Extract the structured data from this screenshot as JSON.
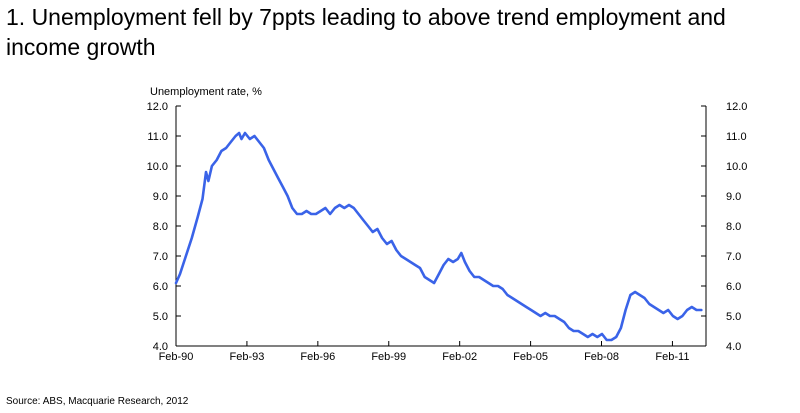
{
  "header": {
    "title": "1.  Unemployment fell by 7ppts leading to above trend employment and income growth"
  },
  "footer": {
    "source": "Source: ABS, Macquarie Research, 2012"
  },
  "colors": {
    "series": "#3a63e8",
    "axis": "#000000"
  },
  "chart_data": {
    "type": "line",
    "ylabel": "Unemployment rate, %",
    "xlabel": "",
    "ylim": [
      4.0,
      12.0
    ],
    "xlim": [
      1990.08,
      2012.5
    ],
    "grid": false,
    "dual_y_axis": true,
    "yticks": [
      "4.0",
      "5.0",
      "6.0",
      "7.0",
      "8.0",
      "9.0",
      "10.0",
      "11.0",
      "12.0"
    ],
    "xticks": [
      {
        "label": "Feb-90",
        "x": 1990.08
      },
      {
        "label": "Feb-93",
        "x": 1993.08
      },
      {
        "label": "Feb-96",
        "x": 1996.08
      },
      {
        "label": "Feb-99",
        "x": 1999.08
      },
      {
        "label": "Feb-02",
        "x": 2002.08
      },
      {
        "label": "Feb-05",
        "x": 2005.08
      },
      {
        "label": "Feb-08",
        "x": 2008.08
      },
      {
        "label": "Feb-11",
        "x": 2011.08
      }
    ],
    "series": [
      {
        "points": [
          [
            1990.08,
            6.1
          ],
          [
            1990.25,
            6.4
          ],
          [
            1990.5,
            7.0
          ],
          [
            1990.75,
            7.6
          ],
          [
            1991.0,
            8.3
          ],
          [
            1991.2,
            8.9
          ],
          [
            1991.35,
            9.8
          ],
          [
            1991.45,
            9.5
          ],
          [
            1991.6,
            10.0
          ],
          [
            1991.8,
            10.2
          ],
          [
            1992.0,
            10.5
          ],
          [
            1992.2,
            10.6
          ],
          [
            1992.4,
            10.8
          ],
          [
            1992.6,
            11.0
          ],
          [
            1992.75,
            11.1
          ],
          [
            1992.85,
            10.9
          ],
          [
            1993.0,
            11.1
          ],
          [
            1993.2,
            10.9
          ],
          [
            1993.4,
            11.0
          ],
          [
            1993.6,
            10.8
          ],
          [
            1993.8,
            10.6
          ],
          [
            1994.0,
            10.2
          ],
          [
            1994.2,
            9.9
          ],
          [
            1994.4,
            9.6
          ],
          [
            1994.6,
            9.3
          ],
          [
            1994.8,
            9.0
          ],
          [
            1995.0,
            8.6
          ],
          [
            1995.2,
            8.4
          ],
          [
            1995.4,
            8.4
          ],
          [
            1995.6,
            8.5
          ],
          [
            1995.8,
            8.4
          ],
          [
            1996.0,
            8.4
          ],
          [
            1996.2,
            8.5
          ],
          [
            1996.4,
            8.6
          ],
          [
            1996.6,
            8.4
          ],
          [
            1996.8,
            8.6
          ],
          [
            1997.0,
            8.7
          ],
          [
            1997.2,
            8.6
          ],
          [
            1997.4,
            8.7
          ],
          [
            1997.6,
            8.6
          ],
          [
            1997.8,
            8.4
          ],
          [
            1998.0,
            8.2
          ],
          [
            1998.2,
            8.0
          ],
          [
            1998.4,
            7.8
          ],
          [
            1998.6,
            7.9
          ],
          [
            1998.8,
            7.6
          ],
          [
            1999.0,
            7.4
          ],
          [
            1999.2,
            7.5
          ],
          [
            1999.4,
            7.2
          ],
          [
            1999.6,
            7.0
          ],
          [
            1999.8,
            6.9
          ],
          [
            2000.0,
            6.8
          ],
          [
            2000.2,
            6.7
          ],
          [
            2000.4,
            6.6
          ],
          [
            2000.6,
            6.3
          ],
          [
            2000.8,
            6.2
          ],
          [
            2001.0,
            6.1
          ],
          [
            2001.2,
            6.4
          ],
          [
            2001.4,
            6.7
          ],
          [
            2001.6,
            6.9
          ],
          [
            2001.8,
            6.8
          ],
          [
            2002.0,
            6.9
          ],
          [
            2002.15,
            7.1
          ],
          [
            2002.3,
            6.8
          ],
          [
            2002.5,
            6.5
          ],
          [
            2002.7,
            6.3
          ],
          [
            2002.9,
            6.3
          ],
          [
            2003.1,
            6.2
          ],
          [
            2003.3,
            6.1
          ],
          [
            2003.5,
            6.0
          ],
          [
            2003.7,
            6.0
          ],
          [
            2003.9,
            5.9
          ],
          [
            2004.1,
            5.7
          ],
          [
            2004.3,
            5.6
          ],
          [
            2004.5,
            5.5
          ],
          [
            2004.7,
            5.4
          ],
          [
            2004.9,
            5.3
          ],
          [
            2005.1,
            5.2
          ],
          [
            2005.3,
            5.1
          ],
          [
            2005.5,
            5.0
          ],
          [
            2005.7,
            5.1
          ],
          [
            2005.9,
            5.0
          ],
          [
            2006.1,
            5.0
          ],
          [
            2006.3,
            4.9
          ],
          [
            2006.5,
            4.8
          ],
          [
            2006.7,
            4.6
          ],
          [
            2006.9,
            4.5
          ],
          [
            2007.1,
            4.5
          ],
          [
            2007.3,
            4.4
          ],
          [
            2007.5,
            4.3
          ],
          [
            2007.7,
            4.4
          ],
          [
            2007.9,
            4.3
          ],
          [
            2008.1,
            4.4
          ],
          [
            2008.3,
            4.2
          ],
          [
            2008.5,
            4.2
          ],
          [
            2008.7,
            4.3
          ],
          [
            2008.9,
            4.6
          ],
          [
            2009.1,
            5.2
          ],
          [
            2009.3,
            5.7
          ],
          [
            2009.5,
            5.8
          ],
          [
            2009.7,
            5.7
          ],
          [
            2009.9,
            5.6
          ],
          [
            2010.1,
            5.4
          ],
          [
            2010.3,
            5.3
          ],
          [
            2010.5,
            5.2
          ],
          [
            2010.7,
            5.1
          ],
          [
            2010.9,
            5.2
          ],
          [
            2011.1,
            5.0
          ],
          [
            2011.3,
            4.9
          ],
          [
            2011.5,
            5.0
          ],
          [
            2011.7,
            5.2
          ],
          [
            2011.9,
            5.3
          ],
          [
            2012.1,
            5.2
          ],
          [
            2012.3,
            5.2
          ]
        ]
      }
    ]
  }
}
